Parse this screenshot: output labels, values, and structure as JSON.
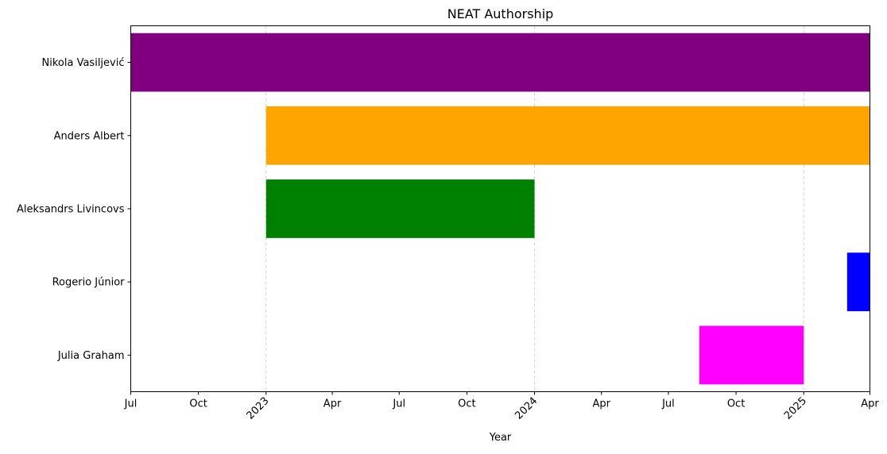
{
  "chart_data": {
    "type": "gantt",
    "title": "NEAT Authorship",
    "xlabel": "Year",
    "ylabel": "",
    "xlim": [
      "2022-07-01",
      "2025-04-01"
    ],
    "grid": "vertical dashed at year boundaries",
    "x_ticks": [
      {
        "date": "2022-07-01",
        "label": "Jul",
        "rotated": false
      },
      {
        "date": "2022-10-01",
        "label": "Oct",
        "rotated": false
      },
      {
        "date": "2023-01-01",
        "label": "2023",
        "rotated": true
      },
      {
        "date": "2023-04-01",
        "label": "Apr",
        "rotated": false
      },
      {
        "date": "2023-07-01",
        "label": "Jul",
        "rotated": false
      },
      {
        "date": "2023-10-01",
        "label": "Oct",
        "rotated": false
      },
      {
        "date": "2024-01-01",
        "label": "2024",
        "rotated": true
      },
      {
        "date": "2024-04-01",
        "label": "Apr",
        "rotated": false
      },
      {
        "date": "2024-07-01",
        "label": "Jul",
        "rotated": false
      },
      {
        "date": "2024-10-01",
        "label": "Oct",
        "rotated": false
      },
      {
        "date": "2025-01-01",
        "label": "2025",
        "rotated": true
      },
      {
        "date": "2025-04-01",
        "label": "Apr",
        "rotated": false
      }
    ],
    "gridlines": [
      "2023-01-01",
      "2024-01-01",
      "2025-01-01"
    ],
    "categories": [
      "Nikola Vasiljević",
      "Anders Albert",
      "Aleksandrs Livincovs",
      "Rogerio Júnior",
      "Julia Graham"
    ],
    "bars": [
      {
        "name": "Nikola Vasiljević",
        "start": "2022-07-01",
        "end": "2025-04-01",
        "color": "#800080"
      },
      {
        "name": "Anders Albert",
        "start": "2023-01-01",
        "end": "2025-04-01",
        "color": "#ffa500"
      },
      {
        "name": "Aleksandrs Livincovs",
        "start": "2023-01-01",
        "end": "2024-01-01",
        "color": "#008000"
      },
      {
        "name": "Rogerio Júnior",
        "start": "2025-03-01",
        "end": "2025-04-01",
        "color": "#0000ff"
      },
      {
        "name": "Julia Graham",
        "start": "2024-08-12",
        "end": "2025-01-01",
        "color": "#ff00ff"
      }
    ]
  }
}
